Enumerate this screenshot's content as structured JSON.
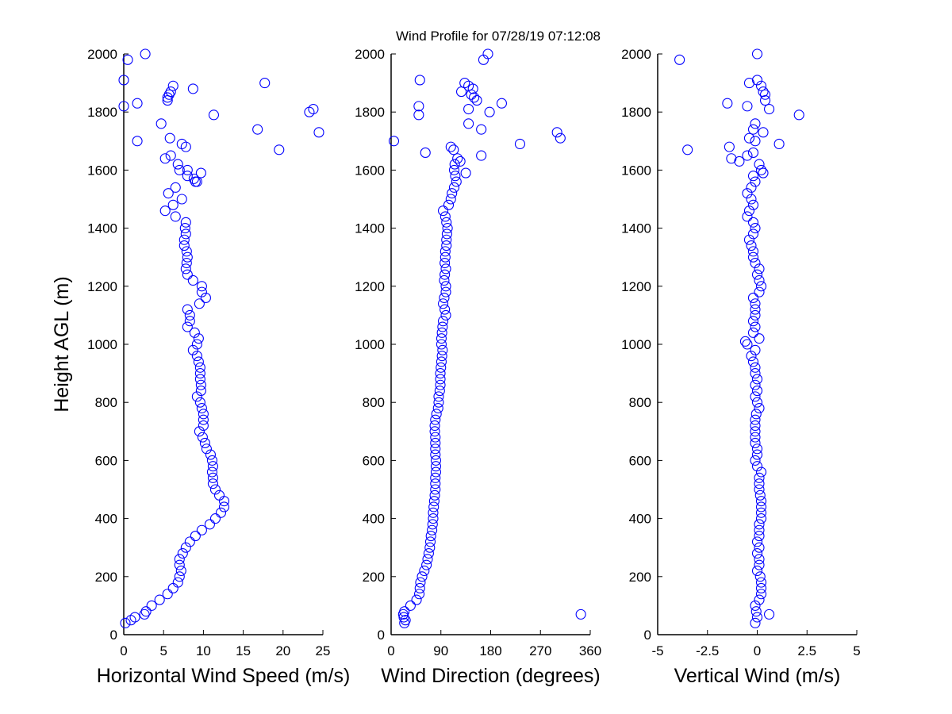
{
  "chart_data": {
    "type": "scatter",
    "title": "Wind Profile for  07/28/19 07:12:08",
    "ylabel": "Height AGL (m)",
    "ylim": [
      0,
      2000
    ],
    "yticks": [
      "0",
      "200",
      "400",
      "600",
      "800",
      "1000",
      "1200",
      "1400",
      "1600",
      "1800",
      "2000"
    ],
    "marker_color": "#0000ff",
    "grid": false,
    "profile_heights": [
      40,
      60,
      80,
      100,
      120,
      140,
      160,
      180,
      200,
      220,
      240,
      260,
      280,
      300,
      320,
      340,
      360,
      380,
      400,
      420,
      440,
      460,
      480,
      500,
      520,
      540,
      560,
      580,
      600,
      620,
      640,
      660,
      680,
      700,
      720,
      740,
      760,
      780,
      800,
      820,
      840,
      860,
      880,
      900,
      920,
      940,
      960,
      980,
      1000,
      1020,
      1040,
      1060,
      1080,
      1100,
      1120,
      1140,
      1160,
      1180,
      1200,
      1220,
      1240,
      1260,
      1280,
      1300,
      1320,
      1340,
      1360,
      1380,
      1400,
      1420,
      1440,
      1460,
      1480,
      1500,
      1520,
      1540,
      1560,
      1580,
      1600
    ],
    "panels": [
      {
        "xlabel": "Horizontal Wind Speed (m/s)",
        "xlim": [
          0,
          25
        ],
        "xticks": [
          0,
          5,
          10,
          15,
          20,
          25
        ],
        "xtick_labels": [
          "0",
          "5",
          "10",
          "15",
          "20",
          "25"
        ],
        "profile_values": [
          0.2,
          1.4,
          2.8,
          3.5,
          4.5,
          5.5,
          6.2,
          6.8,
          7.0,
          7.2,
          7.0,
          7.0,
          7.4,
          7.8,
          8.3,
          9.0,
          9.8,
          10.8,
          11.5,
          12.2,
          12.6,
          12.6,
          12.0,
          11.5,
          11.2,
          11.2,
          11.1,
          11.2,
          11.1,
          10.9,
          10.4,
          10.2,
          9.9,
          9.5,
          10.0,
          10.0,
          10.0,
          9.8,
          9.6,
          9.2,
          9.7,
          9.7,
          9.6,
          9.6,
          9.6,
          9.4,
          9.2,
          8.7,
          9.2,
          9.4,
          8.9,
          8.0,
          8.3,
          8.3,
          8.0,
          9.5,
          10.3,
          9.8,
          9.8,
          8.7,
          8.0,
          7.8,
          7.9,
          8.0,
          7.9,
          7.6,
          7.6,
          7.8,
          7.7,
          7.8,
          6.5,
          5.2,
          6.2,
          7.3,
          5.6,
          6.5,
          9.0,
          8.0,
          7.0
        ],
        "scatter_points": [
          [
            0.5,
            1980
          ],
          [
            2.7,
            2000
          ],
          [
            0.0,
            1910
          ],
          [
            0.0,
            1820
          ],
          [
            1.7,
            1830
          ],
          [
            6.2,
            1890
          ],
          [
            5.9,
            1870
          ],
          [
            5.7,
            1860
          ],
          [
            5.5,
            1850
          ],
          [
            5.5,
            1840
          ],
          [
            8.7,
            1880
          ],
          [
            17.7,
            1900
          ],
          [
            11.3,
            1790
          ],
          [
            4.7,
            1760
          ],
          [
            23.3,
            1800
          ],
          [
            23.8,
            1810
          ],
          [
            16.8,
            1740
          ],
          [
            24.5,
            1730
          ],
          [
            19.5,
            1670
          ],
          [
            1.7,
            1700
          ],
          [
            5.8,
            1710
          ],
          [
            7.3,
            1690
          ],
          [
            7.8,
            1680
          ],
          [
            5.9,
            1650
          ],
          [
            5.2,
            1640
          ],
          [
            6.8,
            1620
          ],
          [
            8.0,
            1600
          ],
          [
            9.7,
            1590
          ],
          [
            8.8,
            1570
          ],
          [
            9.2,
            1560
          ],
          [
            0.9,
            50
          ],
          [
            2.6,
            70
          ]
        ]
      },
      {
        "xlabel": "Wind Direction (degrees)",
        "xlim": [
          0,
          360
        ],
        "xticks": [
          0,
          90,
          180,
          270,
          360
        ],
        "xtick_labels": [
          "0",
          "90",
          "180",
          "270",
          "360"
        ],
        "profile_values": [
          24,
          23,
          24,
          35,
          46,
          51,
          52,
          53,
          56,
          60,
          64,
          66,
          68,
          70,
          71,
          72,
          74,
          75,
          76,
          76,
          77,
          78,
          79,
          80,
          80,
          80,
          81,
          81,
          81,
          80,
          80,
          80,
          80,
          79,
          79,
          80,
          82,
          85,
          86,
          86,
          88,
          89,
          89,
          89,
          90,
          91,
          92,
          93,
          91,
          91,
          92,
          93,
          94,
          99,
          97,
          94,
          96,
          99,
          99,
          96,
          97,
          99,
          97,
          98,
          98,
          100,
          100,
          101,
          102,
          100,
          98,
          94,
          104,
          108,
          110,
          114,
          118,
          116,
          114
        ],
        "scatter_points": [
          [
            343,
            70
          ],
          [
            22,
            70
          ],
          [
            26,
            50
          ],
          [
            115,
            1620
          ],
          [
            120,
            1640
          ],
          [
            125,
            1630
          ],
          [
            113,
            1670
          ],
          [
            108,
            1680
          ],
          [
            135,
            1590
          ],
          [
            62,
            1660
          ],
          [
            5,
            1700
          ],
          [
            163,
            1650
          ],
          [
            163,
            1740
          ],
          [
            233,
            1690
          ],
          [
            300,
            1730
          ],
          [
            306,
            1710
          ],
          [
            140,
            1760
          ],
          [
            50,
            1790
          ],
          [
            50,
            1820
          ],
          [
            140,
            1810
          ],
          [
            178,
            1800
          ],
          [
            200,
            1830
          ],
          [
            150,
            1850
          ],
          [
            155,
            1840
          ],
          [
            145,
            1860
          ],
          [
            133,
            1900
          ],
          [
            140,
            1890
          ],
          [
            148,
            1880
          ],
          [
            127,
            1870
          ],
          [
            52,
            1910
          ],
          [
            167,
            1980
          ],
          [
            175,
            2000
          ]
        ]
      },
      {
        "xlabel": "Vertical Wind (m/s)",
        "xlim": [
          -5,
          5
        ],
        "xticks": [
          -5,
          -2.5,
          0,
          2.5,
          5
        ],
        "xtick_labels": [
          "-5",
          "-2.5",
          "0",
          "2.5",
          "5"
        ],
        "profile_values": [
          -0.1,
          0,
          -0.05,
          -0.1,
          0.1,
          0.2,
          0.2,
          0.2,
          0.15,
          0.0,
          0.1,
          0.1,
          0.0,
          0.1,
          0.0,
          0.1,
          0.1,
          0.1,
          0.2,
          0.2,
          0.2,
          0.2,
          0.15,
          0.1,
          0.1,
          0.1,
          0.2,
          0.0,
          -0.1,
          0.0,
          0.0,
          -0.1,
          -0.1,
          -0.1,
          -0.1,
          -0.1,
          -0.05,
          0.1,
          0.0,
          -0.1,
          0.0,
          -0.1,
          0.0,
          -0.1,
          -0.1,
          -0.2,
          -0.3,
          -0.1,
          -0.5,
          0.1,
          -0.2,
          -0.1,
          -0.2,
          -0.1,
          -0.1,
          -0.1,
          -0.2,
          0.1,
          0.2,
          0.1,
          0.0,
          0.1,
          -0.1,
          -0.2,
          -0.2,
          -0.3,
          -0.4,
          -0.2,
          -0.1,
          -0.2,
          -0.5,
          -0.4,
          -0.2,
          -0.3,
          -0.5,
          -0.3,
          -0.1,
          -0.2,
          0.2
        ],
        "scatter_points": [
          [
            0.6,
            70
          ],
          [
            -0.6,
            1010
          ],
          [
            -3.9,
            1980
          ],
          [
            0.0,
            2000
          ],
          [
            -0.4,
            1900
          ],
          [
            0.0,
            1910
          ],
          [
            0.2,
            1890
          ],
          [
            0.3,
            1870
          ],
          [
            0.4,
            1860
          ],
          [
            0.4,
            1840
          ],
          [
            0.6,
            1810
          ],
          [
            -0.5,
            1820
          ],
          [
            -1.5,
            1830
          ],
          [
            2.1,
            1790
          ],
          [
            -0.1,
            1760
          ],
          [
            0.3,
            1730
          ],
          [
            -0.2,
            1740
          ],
          [
            1.1,
            1690
          ],
          [
            -1.4,
            1680
          ],
          [
            -3.5,
            1670
          ],
          [
            -1.3,
            1640
          ],
          [
            -0.9,
            1630
          ],
          [
            -0.4,
            1710
          ],
          [
            -0.1,
            1700
          ],
          [
            -0.2,
            1660
          ],
          [
            0.1,
            1620
          ],
          [
            -0.5,
            1650
          ],
          [
            0.3,
            1590
          ]
        ]
      }
    ]
  }
}
